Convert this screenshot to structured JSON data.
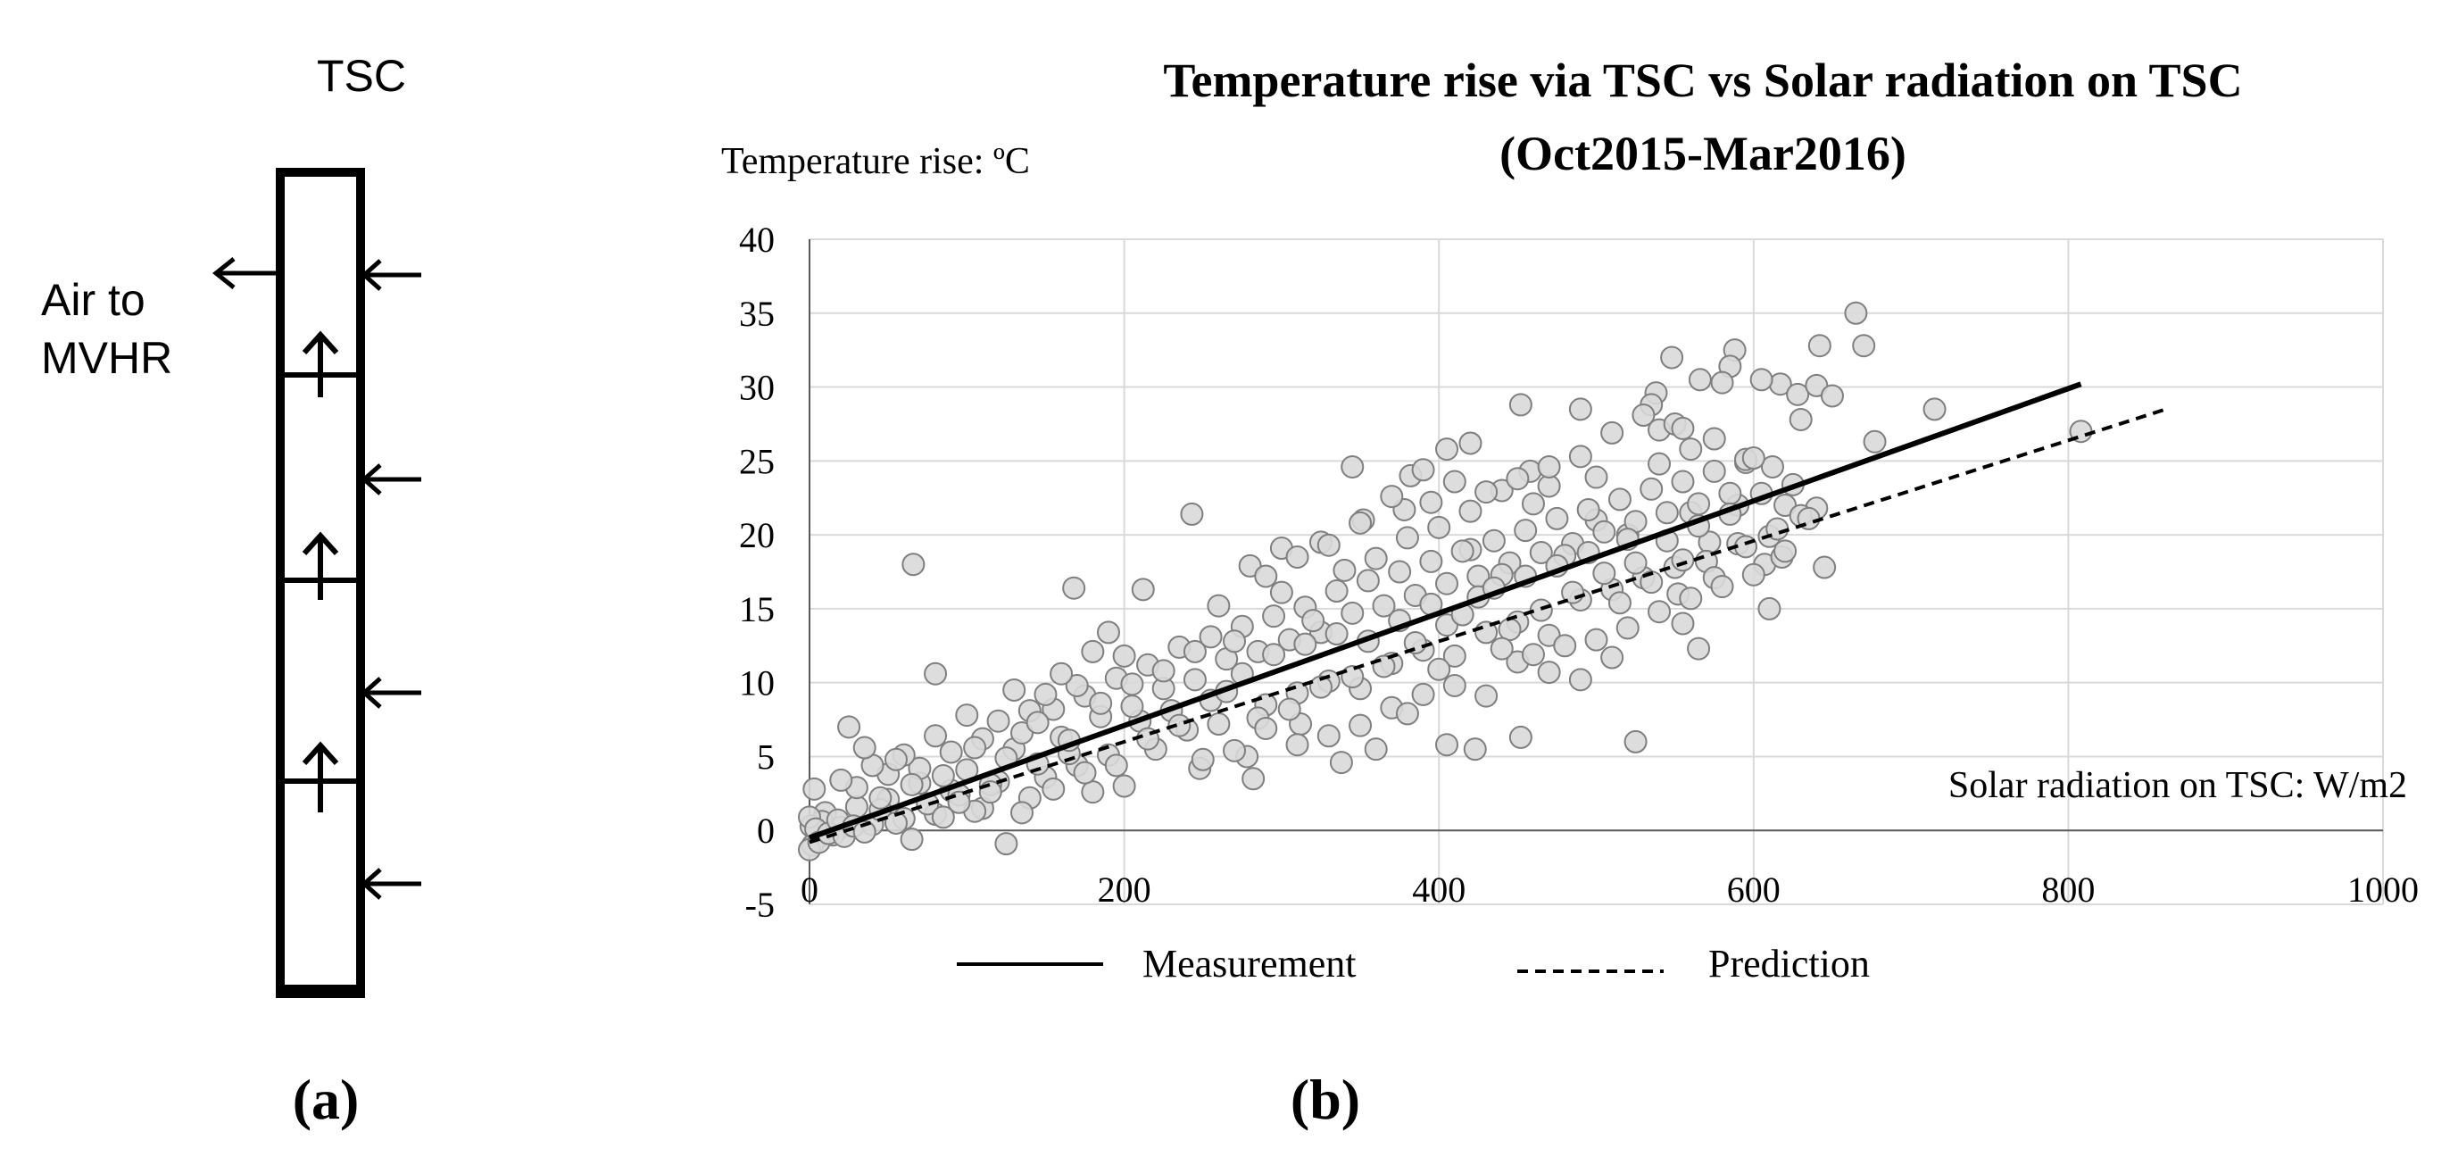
{
  "panel_a": {
    "label": "(a)",
    "top_label": "TSC",
    "outlet_label_lines": [
      "Air to",
      "MVHR"
    ],
    "inlet_arrow_count": 4,
    "flow_arrow_count": 3,
    "segment_count": 4,
    "icons": [
      "air-outlet-arrow-icon",
      "air-inlet-arrow-icon",
      "upward-flow-arrow-icon"
    ]
  },
  "panel_b": {
    "label": "(b)"
  },
  "chart_data": {
    "type": "scatter",
    "title": "Temperature rise via TSC vs Solar radiation on TSC",
    "subtitle": "(Oct2015-Mar2016)",
    "xlabel": "Solar radiation on TSC: W/m2",
    "ylabel": "Temperature rise: ºC",
    "xlim": [
      0,
      1000
    ],
    "ylim": [
      -5,
      40
    ],
    "x_ticks": [
      0,
      200,
      400,
      600,
      800,
      1000
    ],
    "y_ticks": [
      -5,
      0,
      5,
      10,
      15,
      20,
      25,
      30,
      35,
      40
    ],
    "grid": true,
    "scatter": {
      "name": "Observed points",
      "marker": "open-circle",
      "fill": "#d9d9d9",
      "edge": "#7f7f7f",
      "points": [
        [
          665,
          35
        ],
        [
          642,
          32.8
        ],
        [
          670,
          32.8
        ],
        [
          588,
          32.5
        ],
        [
          548,
          32
        ],
        [
          585,
          31.4
        ],
        [
          617,
          30.2
        ],
        [
          605,
          30.5
        ],
        [
          628,
          29.5
        ],
        [
          640,
          30.1
        ],
        [
          580,
          30.3
        ],
        [
          566,
          30.5
        ],
        [
          538,
          29.6
        ],
        [
          535,
          28.8
        ],
        [
          490,
          28.5
        ],
        [
          452,
          28.8
        ],
        [
          715,
          28.5
        ],
        [
          677,
          26.3
        ],
        [
          808,
          27
        ],
        [
          540,
          27.1
        ],
        [
          550,
          27.5
        ],
        [
          560,
          25.8
        ],
        [
          405,
          25.8
        ],
        [
          420,
          26.2
        ],
        [
          345,
          24.6
        ],
        [
          382,
          24
        ],
        [
          458,
          24.3
        ],
        [
          595,
          24.9
        ],
        [
          612,
          24.6
        ],
        [
          243,
          21.4
        ],
        [
          66,
          18
        ],
        [
          80,
          10.6
        ],
        [
          168,
          16.4
        ],
        [
          212,
          16.3
        ],
        [
          280,
          17.9
        ],
        [
          300,
          19.1
        ],
        [
          325,
          19.5
        ],
        [
          352,
          21
        ],
        [
          378,
          21.7
        ],
        [
          395,
          22.2
        ],
        [
          420,
          19
        ],
        [
          440,
          23
        ],
        [
          470,
          23.3
        ],
        [
          500,
          21
        ],
        [
          520,
          20
        ],
        [
          560,
          21.5
        ],
        [
          590,
          22
        ],
        [
          620,
          22
        ],
        [
          645,
          17.8
        ],
        [
          610,
          15
        ],
        [
          640,
          21.8
        ],
        [
          607,
          18
        ],
        [
          618,
          18.5
        ],
        [
          572,
          19.5
        ],
        [
          555,
          14
        ],
        [
          552,
          16
        ],
        [
          565,
          12.3
        ],
        [
          525,
          6
        ],
        [
          452,
          6.3
        ],
        [
          423,
          5.5
        ],
        [
          405,
          5.8
        ],
        [
          338,
          4.6
        ],
        [
          282,
          3.5
        ],
        [
          278,
          5
        ],
        [
          312,
          7.2
        ],
        [
          248,
          4.2
        ],
        [
          230,
          8.1
        ],
        [
          210,
          7.4
        ],
        [
          200,
          3
        ],
        [
          190,
          5.1
        ],
        [
          180,
          2.6
        ],
        [
          170,
          4.4
        ],
        [
          160,
          6.3
        ],
        [
          150,
          3.6
        ],
        [
          140,
          2.2
        ],
        [
          130,
          5.5
        ],
        [
          120,
          3.3
        ],
        [
          110,
          1.5
        ],
        [
          100,
          4.1
        ],
        [
          90,
          2.7
        ],
        [
          80,
          1.1
        ],
        [
          70,
          3.2
        ],
        [
          60,
          0.8
        ],
        [
          50,
          2.1
        ],
        [
          40,
          0.4
        ],
        [
          30,
          1.6
        ],
        [
          25,
          7
        ],
        [
          20,
          0.2
        ],
        [
          15,
          -0.3
        ],
        [
          10,
          1.2
        ],
        [
          8,
          0.6
        ],
        [
          5,
          -0.5
        ],
        [
          3,
          2.8
        ],
        [
          2,
          -1
        ],
        [
          1,
          0.3
        ],
        [
          0,
          -1.3
        ],
        [
          0,
          0.9
        ],
        [
          4,
          0.1
        ],
        [
          6,
          -0.8
        ],
        [
          12,
          -0.2
        ],
        [
          18,
          0.7
        ],
        [
          22,
          -0.4
        ],
        [
          28,
          0.3
        ],
        [
          35,
          -0.1
        ],
        [
          45,
          1.4
        ],
        [
          55,
          0.5
        ],
        [
          65,
          -0.6
        ],
        [
          75,
          1.8
        ],
        [
          85,
          0.9
        ],
        [
          95,
          2.4
        ],
        [
          105,
          1.3
        ],
        [
          115,
          3.1
        ],
        [
          125,
          -0.9
        ],
        [
          135,
          6.6
        ],
        [
          145,
          4.5
        ],
        [
          155,
          8.2
        ],
        [
          165,
          5.2
        ],
        [
          175,
          9.1
        ],
        [
          185,
          7.7
        ],
        [
          195,
          10.3
        ],
        [
          205,
          8.4
        ],
        [
          215,
          11.2
        ],
        [
          225,
          9.6
        ],
        [
          235,
          12.4
        ],
        [
          245,
          10.2
        ],
        [
          255,
          13.1
        ],
        [
          265,
          11.6
        ],
        [
          275,
          13.8
        ],
        [
          285,
          12.1
        ],
        [
          295,
          14.5
        ],
        [
          305,
          12.9
        ],
        [
          315,
          15.1
        ],
        [
          325,
          13.4
        ],
        [
          335,
          16.2
        ],
        [
          345,
          14.7
        ],
        [
          355,
          16.9
        ],
        [
          365,
          15.2
        ],
        [
          375,
          17.5
        ],
        [
          385,
          15.9
        ],
        [
          395,
          18.2
        ],
        [
          405,
          16.7
        ],
        [
          415,
          18.9
        ],
        [
          425,
          17.2
        ],
        [
          435,
          19.6
        ],
        [
          445,
          18.1
        ],
        [
          455,
          20.3
        ],
        [
          465,
          18.8
        ],
        [
          475,
          21.1
        ],
        [
          485,
          19.4
        ],
        [
          495,
          21.7
        ],
        [
          505,
          20.2
        ],
        [
          515,
          22.4
        ],
        [
          525,
          20.9
        ],
        [
          535,
          23.1
        ],
        [
          545,
          21.5
        ],
        [
          555,
          23.6
        ],
        [
          565,
          22.1
        ],
        [
          575,
          24.3
        ],
        [
          585,
          22.8
        ],
        [
          595,
          25.1
        ],
        [
          220,
          5.5
        ],
        [
          240,
          6.8
        ],
        [
          260,
          7.2
        ],
        [
          290,
          8.5
        ],
        [
          310,
          9.3
        ],
        [
          330,
          10.1
        ],
        [
          350,
          9.6
        ],
        [
          370,
          11.3
        ],
        [
          390,
          12.2
        ],
        [
          410,
          11.8
        ],
        [
          430,
          13.4
        ],
        [
          450,
          14.1
        ],
        [
          470,
          13.2
        ],
        [
          490,
          15.6
        ],
        [
          510,
          16.3
        ],
        [
          530,
          17.1
        ],
        [
          550,
          17.8
        ],
        [
          570,
          18.2
        ],
        [
          590,
          19.4
        ],
        [
          610,
          19.9
        ],
        [
          630,
          21.3
        ],
        [
          260,
          15.2
        ],
        [
          270,
          12.8
        ],
        [
          300,
          16.1
        ],
        [
          320,
          14.2
        ],
        [
          340,
          17.6
        ],
        [
          360,
          18.4
        ],
        [
          380,
          19.8
        ],
        [
          400,
          20.5
        ],
        [
          420,
          21.6
        ],
        [
          440,
          17.3
        ],
        [
          460,
          22.1
        ],
        [
          480,
          18.6
        ],
        [
          500,
          23.9
        ],
        [
          520,
          19.7
        ],
        [
          540,
          24.8
        ],
        [
          200,
          11.8
        ],
        [
          190,
          13.4
        ],
        [
          180,
          12.1
        ],
        [
          170,
          9.8
        ],
        [
          160,
          10.6
        ],
        [
          150,
          9.2
        ],
        [
          140,
          8.1
        ],
        [
          130,
          9.5
        ],
        [
          120,
          7.4
        ],
        [
          110,
          6.2
        ],
        [
          100,
          7.8
        ],
        [
          90,
          5.3
        ],
        [
          80,
          6.4
        ],
        [
          70,
          4.2
        ],
        [
          60,
          5.1
        ],
        [
          50,
          3.8
        ],
        [
          40,
          4.4
        ],
        [
          30,
          2.9
        ],
        [
          20,
          3.4
        ],
        [
          35,
          5.6
        ],
        [
          45,
          2.2
        ],
        [
          55,
          4.8
        ],
        [
          65,
          3.1
        ],
        [
          85,
          3.7
        ],
        [
          95,
          1.9
        ],
        [
          105,
          5.6
        ],
        [
          115,
          2.6
        ],
        [
          125,
          4.9
        ],
        [
          135,
          1.2
        ],
        [
          145,
          7.3
        ],
        [
          155,
          2.8
        ],
        [
          165,
          6.1
        ],
        [
          175,
          3.9
        ],
        [
          185,
          8.6
        ],
        [
          195,
          4.4
        ],
        [
          205,
          9.9
        ],
        [
          215,
          6.2
        ],
        [
          225,
          10.8
        ],
        [
          235,
          7.1
        ],
        [
          245,
          12.1
        ],
        [
          255,
          8.8
        ],
        [
          265,
          9.4
        ],
        [
          275,
          10.6
        ],
        [
          285,
          7.6
        ],
        [
          295,
          11.9
        ],
        [
          305,
          8.2
        ],
        [
          315,
          12.6
        ],
        [
          325,
          9.7
        ],
        [
          335,
          13.3
        ],
        [
          345,
          10.4
        ],
        [
          355,
          12.8
        ],
        [
          365,
          11.1
        ],
        [
          375,
          14.2
        ],
        [
          385,
          12.7
        ],
        [
          395,
          15.3
        ],
        [
          405,
          13.9
        ],
        [
          415,
          14.6
        ],
        [
          425,
          15.8
        ],
        [
          435,
          16.4
        ],
        [
          445,
          13.6
        ],
        [
          455,
          17.2
        ],
        [
          465,
          14.9
        ],
        [
          475,
          17.9
        ],
        [
          485,
          16.1
        ],
        [
          495,
          18.8
        ],
        [
          505,
          17.4
        ],
        [
          515,
          15.4
        ],
        [
          525,
          18.1
        ],
        [
          535,
          16.8
        ],
        [
          545,
          19.6
        ],
        [
          555,
          18.3
        ],
        [
          565,
          20.6
        ],
        [
          575,
          17.1
        ],
        [
          585,
          21.4
        ],
        [
          595,
          19.2
        ],
        [
          605,
          22.8
        ],
        [
          615,
          20.4
        ],
        [
          625,
          23.4
        ],
        [
          635,
          21.1
        ],
        [
          450,
          11.4
        ],
        [
          470,
          10.7
        ],
        [
          490,
          10.2
        ],
        [
          510,
          11.7
        ],
        [
          480,
          12.5
        ],
        [
          430,
          9.1
        ],
        [
          410,
          9.8
        ],
        [
          390,
          9.2
        ],
        [
          370,
          8.3
        ],
        [
          350,
          7.1
        ],
        [
          330,
          6.4
        ],
        [
          310,
          5.8
        ],
        [
          290,
          6.9
        ],
        [
          270,
          5.4
        ],
        [
          250,
          4.8
        ],
        [
          360,
          5.5
        ],
        [
          380,
          7.9
        ],
        [
          400,
          10.9
        ],
        [
          440,
          12.3
        ],
        [
          460,
          11.9
        ],
        [
          500,
          12.9
        ],
        [
          520,
          13.7
        ],
        [
          540,
          14.8
        ],
        [
          560,
          15.7
        ],
        [
          580,
          16.5
        ],
        [
          600,
          17.3
        ],
        [
          620,
          18.9
        ],
        [
          600,
          25.2
        ],
        [
          630,
          27.8
        ],
        [
          650,
          29.4
        ],
        [
          575,
          26.5
        ],
        [
          555,
          27.2
        ],
        [
          530,
          28.1
        ],
        [
          510,
          26.9
        ],
        [
          490,
          25.3
        ],
        [
          470,
          24.6
        ],
        [
          450,
          23.8
        ],
        [
          430,
          22.9
        ],
        [
          410,
          23.6
        ],
        [
          390,
          24.4
        ],
        [
          370,
          22.6
        ],
        [
          350,
          20.8
        ],
        [
          330,
          19.3
        ],
        [
          310,
          18.5
        ],
        [
          290,
          17.2
        ]
      ]
    },
    "series": [
      {
        "name": "Measurement",
        "style": "solid",
        "points": [
          [
            0,
            -0.5
          ],
          [
            808,
            30.2
          ]
        ]
      },
      {
        "name": "Prediction",
        "style": "dashed",
        "points": [
          [
            0,
            -0.8
          ],
          [
            862,
            28.5
          ]
        ]
      }
    ],
    "legend_position": "bottom-center"
  }
}
